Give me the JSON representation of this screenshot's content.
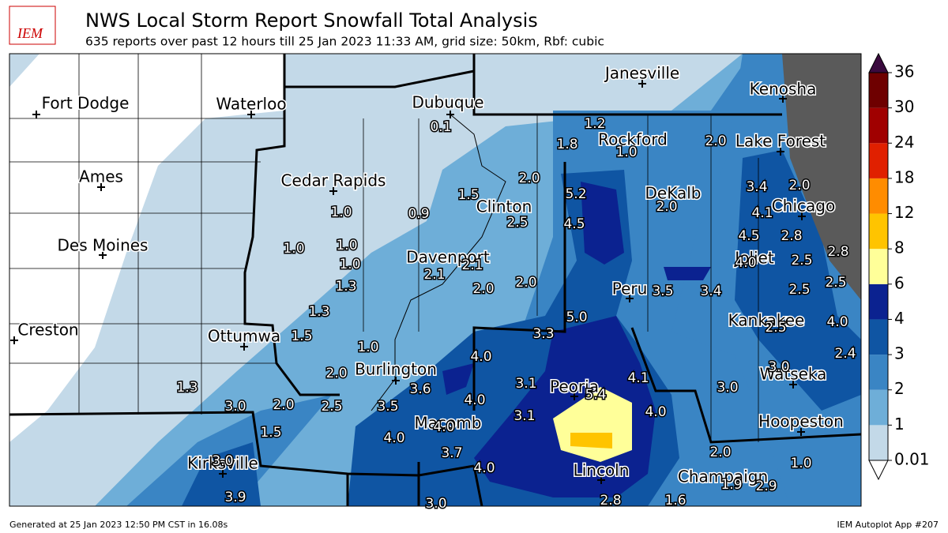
{
  "header": {
    "logo": "IEM",
    "title": "NWS Local Storm Report Snowfall Total Analysis",
    "subtitle": "635 reports over past 12 hours till 25 Jan 2023 11:33 AM, grid size: 50km, Rbf: cubic"
  },
  "cities": [
    "Fort Dodge",
    "Waterloo",
    "Dubuque",
    "Janesville",
    "Kenosha",
    "Rockford",
    "Lake Forest",
    "Ames",
    "Cedar Rapids",
    "DeKalb",
    "Clinton",
    "Chicago",
    "Des Moines",
    "Davenport",
    "Joliet",
    "Peru",
    "Kankakee",
    "Creston",
    "Ottumwa",
    "Burlington",
    "Watseka",
    "Peoria",
    "Hoopeston",
    "Macomb",
    "Kirksville",
    "Lincoln",
    "Champaign"
  ],
  "reports": [
    "0.1",
    "1.2",
    "1.8",
    "1.0",
    "2.0",
    "2.0",
    "1.5",
    "5.2",
    "2.0",
    "3.4",
    "2.0",
    "4.1",
    "1.0",
    "0.9",
    "2.5",
    "4.5",
    "4.5",
    "2.8",
    "1.0",
    "1.0",
    "1.0",
    "4.0",
    "2.5",
    "2.8",
    "2.1",
    "2.1",
    "1.3",
    "2.0",
    "2.0",
    "3.5",
    "3.4",
    "2.5",
    "2.5",
    "1.3",
    "5.0",
    "3.3",
    "2.5",
    "4.0",
    "1.5",
    "1.0",
    "4.0",
    "2.4",
    "2.0",
    "3.0",
    "1.3",
    "3.6",
    "3.1",
    "4.1",
    "3.0",
    "5.4",
    "3.0",
    "2.0",
    "2.5",
    "3.5",
    "4.0",
    "3.1",
    "4.0",
    "1.5",
    "4.0",
    "4.0",
    "3.7",
    "2.0",
    "1.0",
    "3.0",
    "4.0",
    "1.9",
    "2.9",
    "3.9",
    "3.0",
    "2.8",
    "1.6"
  ],
  "colorbar": {
    "ticks": [
      0.01,
      1,
      2,
      3,
      4,
      6,
      8,
      12,
      18,
      24,
      30,
      36
    ],
    "colors": [
      "#c3d9e8",
      "#6eaed8",
      "#3a85c4",
      "#0f55a3",
      "#0b2290",
      "#ffff99",
      "#ffc400",
      "#ff8c00",
      "#e02000",
      "#a00000",
      "#6e0000"
    ],
    "over_color": "#3a0a3e",
    "under_color": "#ffffff"
  },
  "footer": {
    "generated": "Generated at 25 Jan 2023 12:50 PM CST in 16.08s",
    "app": "IEM Autoplot App #207"
  }
}
